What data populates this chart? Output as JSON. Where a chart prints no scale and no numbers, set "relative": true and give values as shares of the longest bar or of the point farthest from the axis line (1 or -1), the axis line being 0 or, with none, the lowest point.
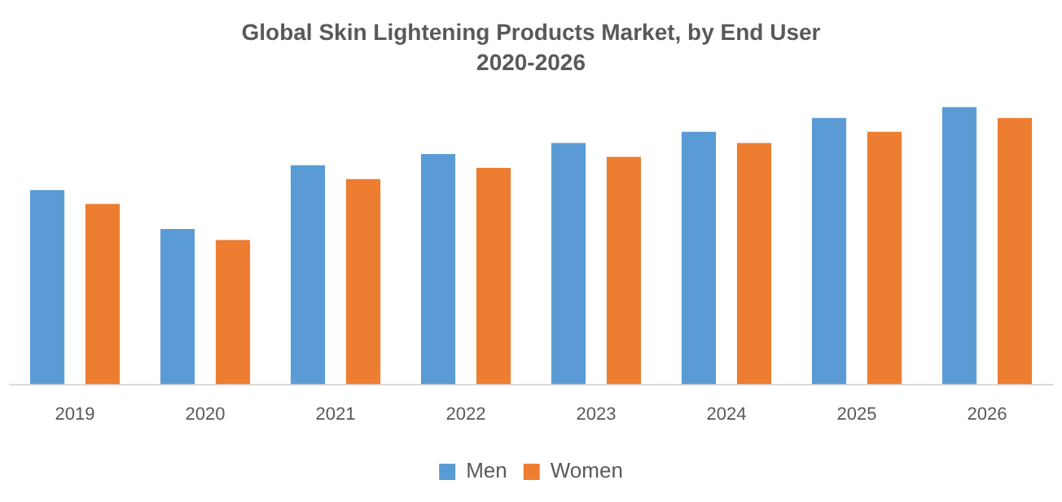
{
  "chart_data": {
    "type": "bar",
    "title": "Global Skin Lightening Products Market, by End User",
    "subtitle": "2020-2026",
    "categories": [
      "2019",
      "2020",
      "2021",
      "2022",
      "2023",
      "2024",
      "2025",
      "2026"
    ],
    "relative": true,
    "series": [
      {
        "name": "Men",
        "color": "#5b9bd5",
        "values": [
          0.7,
          0.56,
          0.79,
          0.83,
          0.87,
          0.91,
          0.96,
          1
        ]
      },
      {
        "name": "Women",
        "color": "#ed7d31",
        "values": [
          0.65,
          0.52,
          0.74,
          0.78,
          0.82,
          0.87,
          0.91,
          0.96
        ]
      }
    ],
    "grid": false,
    "legend": "bottom"
  }
}
